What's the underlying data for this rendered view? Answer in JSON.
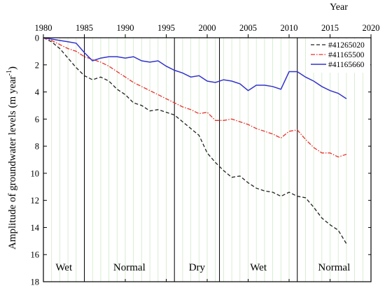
{
  "chart_data": {
    "type": "line",
    "xlabel": "Year",
    "ylabel": "Amplitude of groundwater levels (m year",
    "ylabel_sup": "-1",
    "ylabel_close": ")",
    "xlim": [
      1980,
      2020
    ],
    "ylim": [
      0,
      18
    ],
    "y_inverted": true,
    "x_axis_position": "top",
    "xticks": [
      "1980",
      "1985",
      "1990",
      "1995",
      "2000",
      "2005",
      "2010",
      "2015",
      "2020"
    ],
    "yticks": [
      "0",
      "2",
      "4",
      "6",
      "8",
      "10",
      "12",
      "14",
      "16",
      "18"
    ],
    "grid": "vertical minor, light green",
    "legend_position": "top-right",
    "periods": [
      {
        "label": "Wet",
        "start": 1980,
        "end": 1985
      },
      {
        "label": "Normal",
        "start": 1985,
        "end": 1996
      },
      {
        "label": "Dry",
        "start": 1996,
        "end": 2001.5
      },
      {
        "label": "Wet",
        "start": 2001.5,
        "end": 2011
      },
      {
        "label": "Normal",
        "start": 2011,
        "end": 2020
      }
    ],
    "series": [
      {
        "name": "#41265020",
        "color": "#222222",
        "style": "dashed",
        "x": [
          1980,
          1981,
          1982,
          1983,
          1984,
          1985,
          1986,
          1987,
          1988,
          1989,
          1990,
          1991,
          1992,
          1993,
          1994,
          1995,
          1996,
          1997,
          1998,
          1999,
          2000,
          2001,
          2002,
          2003,
          2004,
          2005,
          2006,
          2007,
          2008,
          2009,
          2010,
          2011,
          2012,
          2013,
          2014,
          2015,
          2016,
          2017
        ],
        "values": [
          0,
          0.3,
          0.8,
          1.5,
          2.2,
          2.8,
          3.1,
          2.9,
          3.2,
          3.8,
          4.2,
          4.8,
          5.0,
          5.4,
          5.3,
          5.5,
          5.7,
          6.2,
          6.7,
          7.2,
          8.5,
          9.2,
          9.8,
          10.3,
          10.2,
          10.7,
          11.1,
          11.3,
          11.4,
          11.7,
          11.4,
          11.7,
          11.8,
          12.5,
          13.3,
          13.8,
          14.2,
          15.2
        ]
      },
      {
        "name": "#41165500",
        "color": "#e8302a",
        "style": "dash-dot",
        "x": [
          1980,
          1981,
          1982,
          1983,
          1984,
          1985,
          1986,
          1987,
          1988,
          1989,
          1990,
          1991,
          1992,
          1993,
          1994,
          1995,
          1996,
          1997,
          1998,
          1999,
          2000,
          2001,
          2002,
          2003,
          2004,
          2005,
          2006,
          2007,
          2008,
          2009,
          2010,
          2011,
          2012,
          2013,
          2014,
          2015,
          2016,
          2017
        ],
        "values": [
          0,
          0.2,
          0.5,
          0.8,
          1.0,
          1.4,
          1.6,
          1.8,
          2.1,
          2.5,
          2.9,
          3.3,
          3.6,
          3.9,
          4.2,
          4.5,
          4.8,
          5.1,
          5.3,
          5.6,
          5.5,
          6.1,
          6.1,
          6.0,
          6.2,
          6.4,
          6.7,
          6.9,
          7.1,
          7.4,
          6.9,
          6.8,
          7.5,
          8.1,
          8.5,
          8.5,
          8.8,
          8.6
        ]
      },
      {
        "name": "#41165660",
        "color": "#3333cc",
        "style": "solid",
        "x": [
          1980,
          1981,
          1982,
          1983,
          1984,
          1985,
          1986,
          1987,
          1988,
          1989,
          1990,
          1991,
          1992,
          1993,
          1994,
          1995,
          1996,
          1997,
          1998,
          1999,
          2000,
          2001,
          2002,
          2003,
          2004,
          2005,
          2006,
          2007,
          2008,
          2009,
          2010,
          2011,
          2012,
          2013,
          2014,
          2015,
          2016,
          2017
        ],
        "values": [
          0,
          0.1,
          0.2,
          0.3,
          0.4,
          1.1,
          1.7,
          1.5,
          1.4,
          1.4,
          1.5,
          1.4,
          1.7,
          1.8,
          1.7,
          2.1,
          2.4,
          2.6,
          2.9,
          2.8,
          3.2,
          3.3,
          3.1,
          3.2,
          3.4,
          3.9,
          3.5,
          3.5,
          3.6,
          3.8,
          2.5,
          2.5,
          2.9,
          3.2,
          3.6,
          3.9,
          4.1,
          4.5
        ]
      }
    ]
  }
}
